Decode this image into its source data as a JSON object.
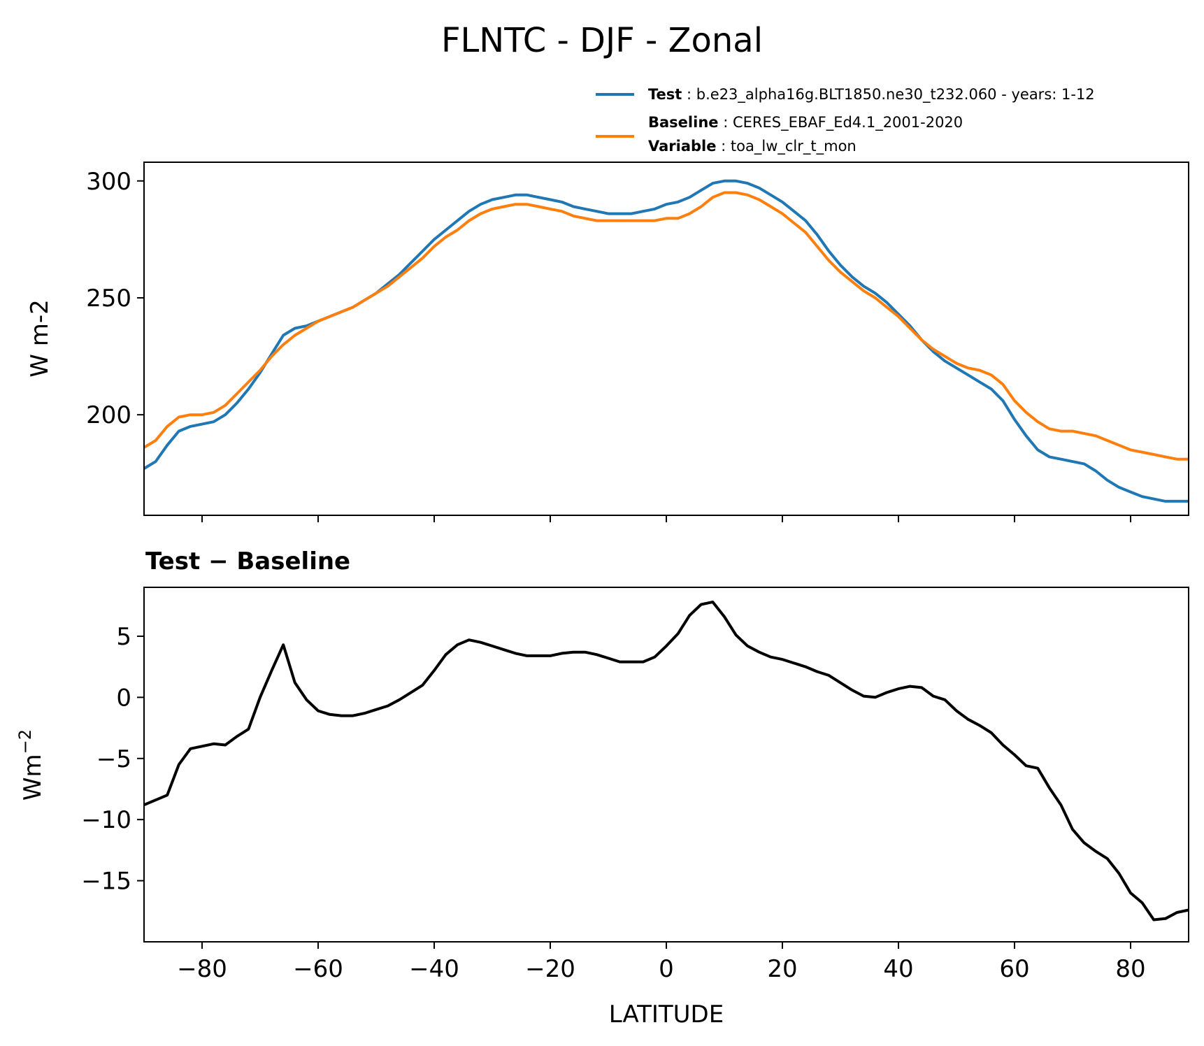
{
  "title": "FLNTC - DJF - Zonal",
  "legend": [
    {
      "key": "Test",
      "sep": " : ",
      "value": "b.e23_alpha16g.BLT1850.ne30_t232.060 - years: 1-12",
      "color": "#1f77b4"
    },
    {
      "key": "Baseline",
      "sep": " : ",
      "value": "CERES_EBAF_Ed4.1_2001-2020",
      "color": "#ff7f0e",
      "key2": "Variable",
      "value2": "toa_lw_clr_t_mon"
    }
  ],
  "colors": {
    "test": "#1f77b4",
    "baseline": "#ff7f0e",
    "diff": "#000000"
  },
  "chart_data": [
    {
      "type": "line",
      "title": "",
      "xlabel": "",
      "ylabel": "W m-2",
      "xlim": [
        -90,
        90
      ],
      "ylim": [
        157,
        308
      ],
      "xticks": [
        -80,
        -60,
        -40,
        -20,
        0,
        20,
        40,
        60,
        80
      ],
      "yticks": [
        200,
        250,
        300
      ],
      "ytick_labels": [
        "200",
        "250",
        "300"
      ],
      "x": [
        -90,
        -88,
        -86,
        -84,
        -82,
        -80,
        -78,
        -76,
        -74,
        -72,
        -70,
        -68,
        -66,
        -64,
        -62,
        -60,
        -58,
        -56,
        -54,
        -52,
        -50,
        -48,
        -46,
        -44,
        -42,
        -40,
        -38,
        -36,
        -34,
        -32,
        -30,
        -28,
        -26,
        -24,
        -22,
        -20,
        -18,
        -16,
        -14,
        -12,
        -10,
        -8,
        -6,
        -4,
        -2,
        0,
        2,
        4,
        6,
        8,
        10,
        12,
        14,
        16,
        18,
        20,
        22,
        24,
        26,
        28,
        30,
        32,
        34,
        36,
        38,
        40,
        42,
        44,
        46,
        48,
        50,
        52,
        54,
        56,
        58,
        60,
        62,
        64,
        66,
        68,
        70,
        72,
        74,
        76,
        78,
        80,
        82,
        84,
        86,
        88,
        90
      ],
      "series": [
        {
          "name": "Test",
          "values": [
            177,
            180,
            187,
            193,
            195,
            196,
            197,
            200,
            205,
            211,
            218,
            226,
            234,
            237,
            238,
            240,
            242,
            244,
            246,
            249,
            252,
            256,
            260,
            265,
            270,
            275,
            279,
            283,
            287,
            290,
            292,
            293,
            294,
            294,
            293,
            292,
            291,
            289,
            288,
            287,
            286,
            286,
            286,
            287,
            288,
            290,
            291,
            293,
            296,
            299,
            300,
            300,
            299,
            297,
            294,
            291,
            287,
            283,
            277,
            270,
            264,
            259,
            255,
            252,
            248,
            243,
            238,
            232,
            227,
            223,
            220,
            217,
            214,
            211,
            206,
            198,
            191,
            185,
            182,
            181,
            180,
            179,
            176,
            172,
            169,
            167,
            165,
            164,
            163,
            163,
            163
          ]
        },
        {
          "name": "Baseline",
          "values": [
            186,
            189,
            195,
            199,
            200,
            200,
            201,
            204,
            209,
            214,
            219,
            225,
            230,
            234,
            237,
            240,
            242,
            244,
            246,
            249,
            252,
            255,
            259,
            263,
            267,
            272,
            276,
            279,
            283,
            286,
            288,
            289,
            290,
            290,
            289,
            288,
            287,
            285,
            284,
            283,
            283,
            283,
            283,
            283,
            283,
            284,
            284,
            286,
            289,
            293,
            295,
            295,
            294,
            292,
            289,
            286,
            282,
            278,
            272,
            266,
            261,
            257,
            253,
            250,
            246,
            242,
            237,
            232,
            228,
            225,
            222,
            220,
            219,
            217,
            213,
            206,
            201,
            197,
            194,
            193,
            193,
            192,
            191,
            189,
            187,
            185,
            184,
            183,
            182,
            181,
            181
          ]
        }
      ]
    },
    {
      "type": "line",
      "title": "Test − Baseline",
      "xlabel": "LATITUDE",
      "ylabel": "Wm",
      "ylabel_sup": "−2",
      "xlim": [
        -90,
        90
      ],
      "ylim": [
        -20,
        9
      ],
      "xticks": [
        -80,
        -60,
        -40,
        -20,
        0,
        20,
        40,
        60,
        80
      ],
      "xtick_labels": [
        "−80",
        "−60",
        "−40",
        "−20",
        "0",
        "20",
        "40",
        "60",
        "80"
      ],
      "yticks": [
        -15,
        -10,
        -5,
        0,
        5
      ],
      "ytick_labels": [
        "−15",
        "−10",
        "−5",
        "0",
        "5"
      ],
      "x": [
        -90,
        -88,
        -86,
        -84,
        -82,
        -80,
        -78,
        -76,
        -74,
        -72,
        -70,
        -68,
        -66,
        -64,
        -62,
        -60,
        -58,
        -56,
        -54,
        -52,
        -50,
        -48,
        -46,
        -44,
        -42,
        -40,
        -38,
        -36,
        -34,
        -32,
        -30,
        -28,
        -26,
        -24,
        -22,
        -20,
        -18,
        -16,
        -14,
        -12,
        -10,
        -8,
        -6,
        -4,
        -2,
        0,
        2,
        4,
        6,
        8,
        10,
        12,
        14,
        16,
        18,
        20,
        22,
        24,
        26,
        28,
        30,
        32,
        34,
        36,
        38,
        40,
        42,
        44,
        46,
        48,
        50,
        52,
        54,
        56,
        58,
        60,
        62,
        64,
        66,
        68,
        70,
        72,
        74,
        76,
        78,
        80,
        82,
        84,
        86,
        88,
        90
      ],
      "series": [
        {
          "name": "Test − Baseline",
          "values": [
            -8.8,
            -8.4,
            -8.0,
            -5.5,
            -4.2,
            -4.0,
            -3.8,
            -3.9,
            -3.2,
            -2.6,
            0.0,
            2.2,
            4.3,
            1.2,
            -0.2,
            -1.1,
            -1.4,
            -1.5,
            -1.5,
            -1.3,
            -1.0,
            -0.7,
            -0.2,
            0.4,
            1.0,
            2.2,
            3.5,
            4.3,
            4.7,
            4.5,
            4.2,
            3.9,
            3.6,
            3.4,
            3.4,
            3.4,
            3.6,
            3.7,
            3.7,
            3.5,
            3.2,
            2.9,
            2.9,
            2.9,
            3.3,
            4.2,
            5.2,
            6.7,
            7.6,
            7.8,
            6.6,
            5.1,
            4.2,
            3.7,
            3.3,
            3.1,
            2.8,
            2.5,
            2.1,
            1.8,
            1.2,
            0.6,
            0.1,
            0.0,
            0.4,
            0.7,
            0.9,
            0.8,
            0.1,
            -0.2,
            -1.1,
            -1.8,
            -2.3,
            -2.9,
            -3.9,
            -4.7,
            -5.6,
            -5.8,
            -7.4,
            -8.8,
            -10.8,
            -11.9,
            -12.6,
            -13.2,
            -14.4,
            -16.0,
            -16.8,
            -18.2,
            -18.1,
            -17.6,
            -17.4
          ]
        }
      ]
    }
  ]
}
